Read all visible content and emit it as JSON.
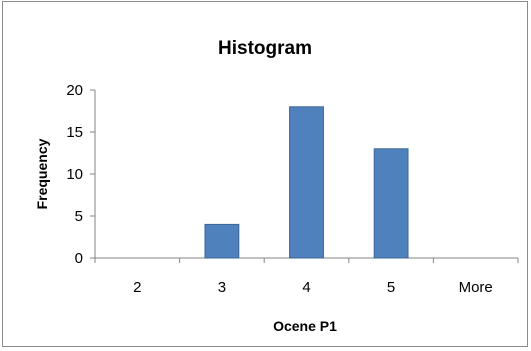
{
  "chart_data": {
    "type": "bar",
    "title": "Histogram",
    "xlabel": "Ocene P1",
    "ylabel": "Frequency",
    "categories": [
      "2",
      "3",
      "4",
      "5",
      "More"
    ],
    "series": [
      {
        "values": [
          0,
          4,
          18,
          13,
          0
        ]
      }
    ],
    "ylim": [
      0,
      20
    ],
    "yticks": [
      0,
      5,
      10,
      15,
      20
    ],
    "grid": false,
    "legend": "none",
    "bar_color": "#4f81bd",
    "bar_border_color": "#3c6596"
  }
}
